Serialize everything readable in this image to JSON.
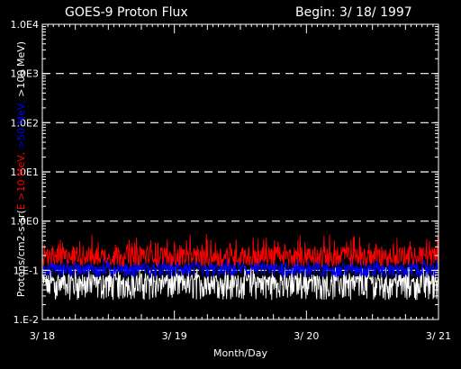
{
  "chart_data": {
    "type": "line",
    "title": "GOES-9 Proton Flux",
    "begin_label": "Begin: 3/ 18/ 1997",
    "xlabel": "Month/Day",
    "ylabel_segments": [
      {
        "text": "Protons/cm2-s-sr(",
        "color": "#ffffff"
      },
      {
        "text": "E >10 MeV, ",
        "color": "#ff0000"
      },
      {
        "text": ">50 MeV, ",
        "color": "#0000ff"
      },
      {
        "text": ">100 MeV)",
        "color": "#ffffff"
      }
    ],
    "yscale": "log",
    "ylim": [
      0.01,
      10000
    ],
    "yticks": [
      "1.E-2",
      "1.E-1",
      "1.0E0",
      "1.0E1",
      "1.0E2",
      "1.0E3",
      "1.0E4"
    ],
    "xlim": [
      0,
      3
    ],
    "xticks": [
      {
        "value": 0,
        "label": "3/ 18"
      },
      {
        "value": 1,
        "label": "3/ 19"
      },
      {
        "value": 2,
        "label": "3/ 20"
      },
      {
        "value": 3,
        "label": "3/ 21"
      }
    ],
    "grid": "dashed horizontal",
    "series": [
      {
        "name": ">100 MeV",
        "color": "#ffffff",
        "min": 0.025,
        "max": 0.12,
        "typical": 0.06
      },
      {
        "name": ">50 MeV",
        "color": "#0000ff",
        "min": 0.07,
        "max": 0.18,
        "typical": 0.11
      },
      {
        "name": ">10 MeV",
        "color": "#ff0000",
        "min": 0.12,
        "max": 0.55,
        "typical": 0.19
      }
    ]
  }
}
